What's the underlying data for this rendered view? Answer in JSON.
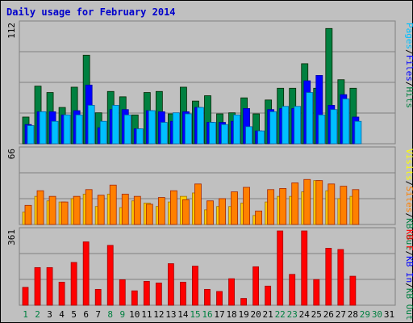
{
  "chart_data": {
    "type": "bar",
    "title": "Daily usage for February 2014",
    "categories": [
      "1",
      "2",
      "3",
      "4",
      "5",
      "6",
      "7",
      "8",
      "9",
      "10",
      "11",
      "12",
      "13",
      "14",
      "15",
      "16",
      "17",
      "18",
      "19",
      "20",
      "21",
      "22",
      "23",
      "24",
      "25",
      "26",
      "27",
      "28",
      "29",
      "30",
      "31"
    ],
    "weekend_days": [
      "1",
      "2",
      "8",
      "9",
      "15",
      "16",
      "22",
      "23",
      "29",
      "30"
    ],
    "panels": [
      {
        "ymax_label": "112",
        "ymax": 112,
        "right_labels": [
          {
            "text": "Pages",
            "color": "#00bfff"
          },
          {
            "text": "Files",
            "color": "#0000ff"
          },
          {
            "text": "Hits",
            "color": "#008040"
          }
        ],
        "series": [
          {
            "name": "Hits",
            "color": "#008040",
            "values": [
              25,
              54,
              48,
              34,
              53,
              83,
              29,
              49,
              44,
              27,
              48,
              49,
              28,
              53,
              40,
              45,
              28,
              29,
              43,
              28,
              41,
              52,
              52,
              75,
              52,
              108,
              60,
              52,
              0,
              0,
              0
            ]
          },
          {
            "name": "Files",
            "color": "#0000ff",
            "values": [
              18,
              30,
              30,
              27,
              31,
              55,
              15,
              32,
              32,
              14,
              31,
              30,
              21,
              30,
              34,
              20,
              20,
              21,
              33,
              12,
              32,
              33,
              33,
              59,
              64,
              36,
              46,
              25,
              0,
              0,
              0
            ]
          },
          {
            "name": "Pages",
            "color": "#00bfff",
            "values": [
              17,
              30,
              21,
              27,
              27,
              36,
              21,
              36,
              27,
              14,
              31,
              20,
              29,
              28,
              34,
              20,
              18,
              27,
              16,
              12,
              30,
              35,
              35,
              48,
              27,
              32,
              42,
              21,
              0,
              0,
              0
            ]
          }
        ],
        "day_values_note": ""
      },
      {
        "ymax_label": "66",
        "ymax": 66,
        "right_labels": [
          {
            "text": "Visits",
            "color": "#ffff00"
          },
          {
            "text": "Sites",
            "color": "#ff8000"
          },
          {
            "text": "KB Out",
            "color": "#008040"
          }
        ],
        "series": [
          {
            "name": "Visits",
            "color": "#ffcc00",
            "values": [
              11,
              25,
              21,
              20,
              23,
              27,
              16,
              27,
              15,
              21,
              19,
              16,
              20,
              25,
              28,
              13,
              16,
              16,
              19,
              8,
              20,
              25,
              25,
              29,
              39,
              30,
              23,
              25,
              0,
              0,
              0
            ]
          },
          {
            "name": "Sites",
            "color": "#ff8000",
            "values": [
              17,
              30,
              25,
              20,
              25,
              31,
              26,
              35,
              27,
              25,
              18,
              24,
              30,
              22,
              36,
              21,
              23,
              29,
              33,
              12,
              31,
              32,
              37,
              40,
              39,
              36,
              34,
              31,
              0,
              0,
              0
            ]
          }
        ]
      },
      {
        "ymax_label": "361",
        "ymax": 361,
        "right_labels": [
          {
            "text": "KB F",
            "color": "#ff0000"
          },
          {
            "text": "KB In",
            "color": "#0000ff"
          },
          {
            "text": "KB Out",
            "color": "#008040"
          }
        ],
        "series": [
          {
            "name": "KB F",
            "color": "#ff0000",
            "values": [
              87,
              183,
              183,
              112,
              208,
              308,
              77,
              291,
              124,
              70,
              116,
              108,
              202,
              112,
              190,
              77,
              67,
              129,
              33,
              187,
              93,
              361,
              150,
              361,
              125,
              277,
              271,
              141,
              0,
              0,
              0
            ]
          }
        ]
      }
    ]
  },
  "colors": {
    "background": "#c0c0c0",
    "plot_background": "#c0c0c0",
    "title": "#0000cc",
    "weekday_label": "#000000",
    "weekend_label": "#008040"
  }
}
